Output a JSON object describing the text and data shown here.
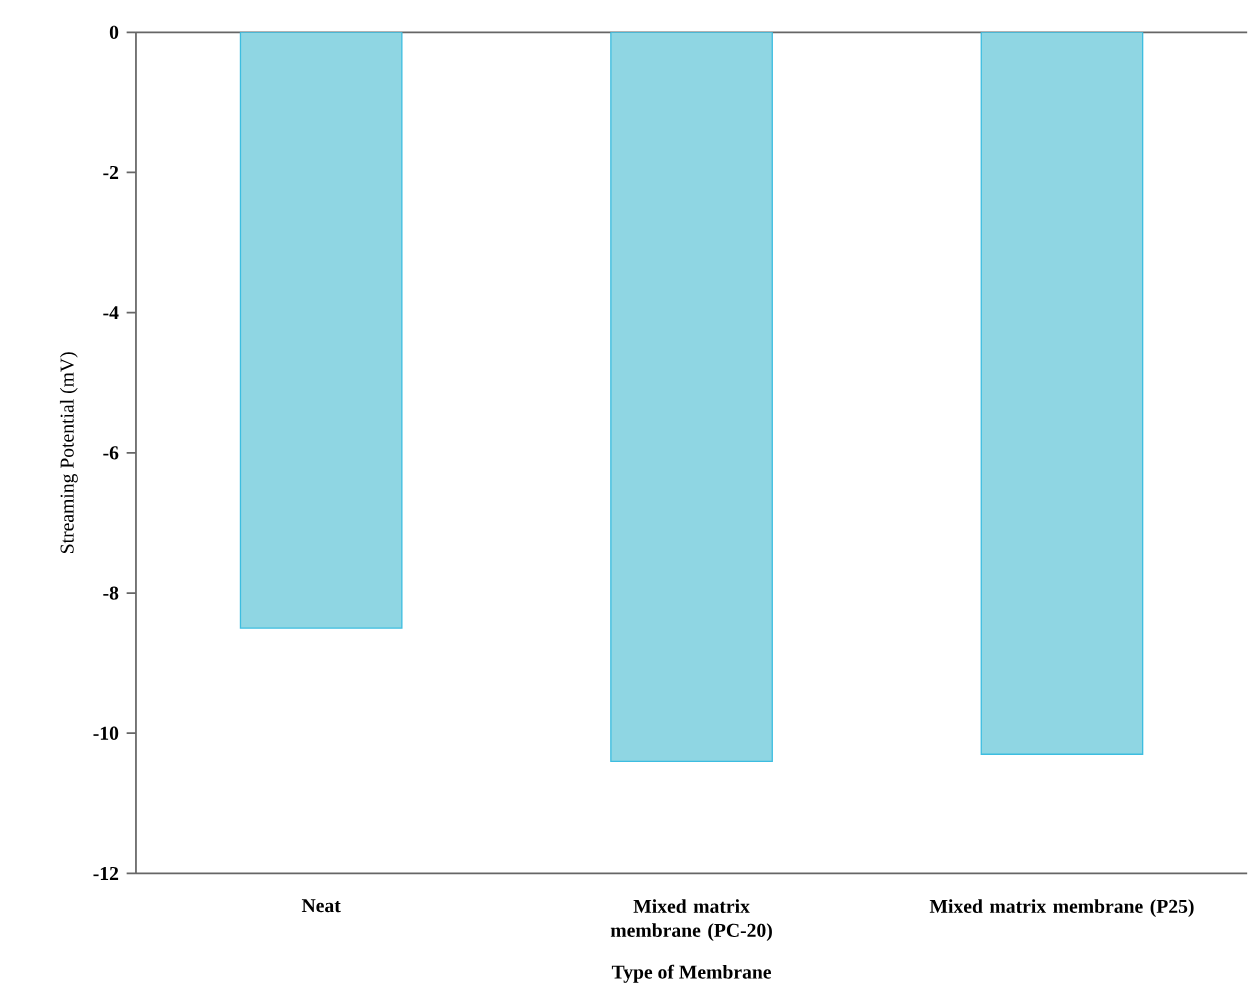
{
  "chart_data": {
    "type": "bar",
    "xlabel": "Type of Membrane",
    "ylabel": "Streaming Potential (mV)",
    "categories": [
      "Neat",
      "Mixed matrix membrane (PC-20)",
      "Mixed matrix membrane (P25)"
    ],
    "values": [
      -8.5,
      -10.4,
      -10.3
    ],
    "color": "#8fd6e3",
    "ylim": [
      -12,
      0
    ],
    "yticks": [
      -12,
      -10,
      -8,
      -6,
      -4,
      -2,
      0
    ],
    "grid": false
  }
}
